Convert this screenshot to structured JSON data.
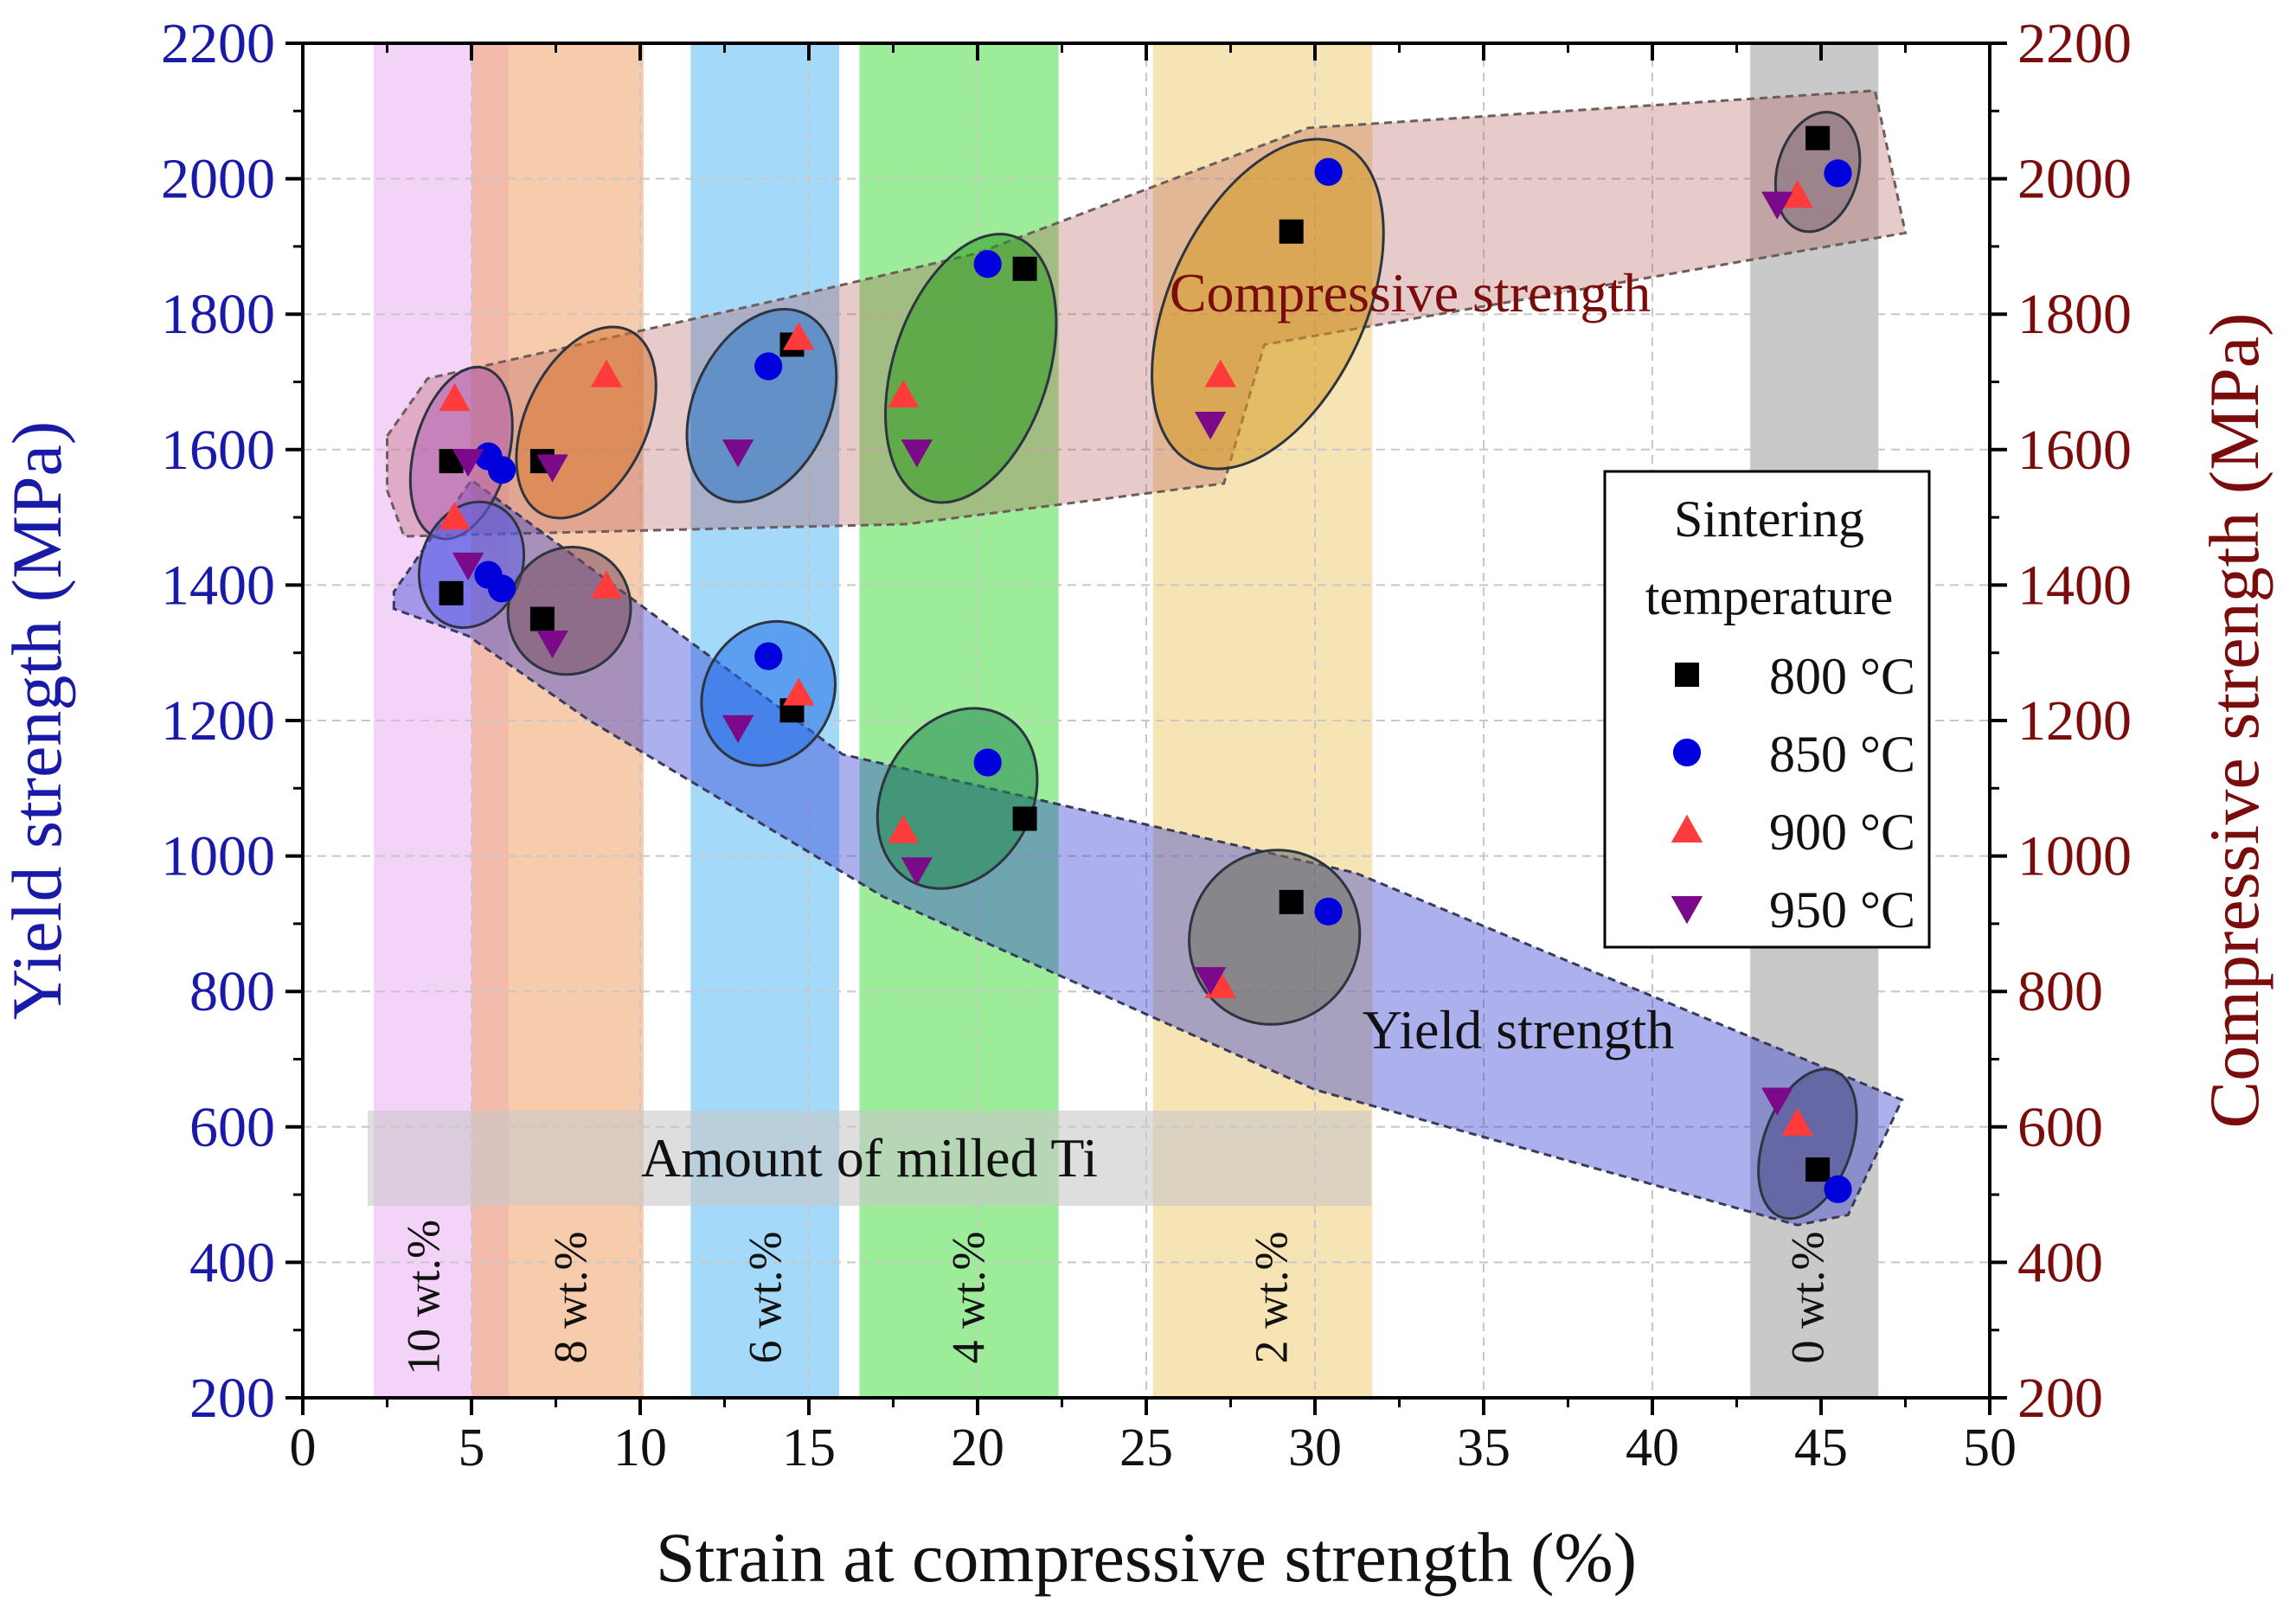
{
  "chart_data": {
    "type": "scatter",
    "xlabel": "Strain at compressive strength (%)",
    "ylabel_left": "Yield strength (MPa)",
    "ylabel_right": "Compressive strength (MPa)",
    "xlim": [
      0,
      50
    ],
    "ylim": [
      200,
      2200
    ],
    "xticks": [
      "0",
      "5",
      "10",
      "15",
      "20",
      "25",
      "30",
      "35",
      "40",
      "45",
      "50"
    ],
    "yticks": [
      "200",
      "400",
      "600",
      "800",
      "1000",
      "1200",
      "1400",
      "1600",
      "1800",
      "2000",
      "2200"
    ],
    "colors": {
      "left_axis": "#1a1aa8",
      "right_axis": "#7a0c0c",
      "s800": "#000000",
      "s850": "#0000dd",
      "s900": "#ff3b3b",
      "s950": "#7a0a8a"
    },
    "bands": [
      {
        "label": "10 wt.%",
        "x0": 2.1,
        "x1": 6.1,
        "color": "#eeb8f5"
      },
      {
        "label": "8 wt.%",
        "x0": 5.0,
        "x1": 10.1,
        "color": "#f2ad7a"
      },
      {
        "label": "6 wt.%",
        "x0": 11.5,
        "x1": 15.9,
        "color": "#6ec2f7"
      },
      {
        "label": "4 wt.%",
        "x0": 16.5,
        "x1": 22.4,
        "color": "#5fe05a"
      },
      {
        "label": "2 wt.%",
        "x0": 25.2,
        "x1": 31.7,
        "color": "#f2d487"
      },
      {
        "label": "0 wt.%",
        "x0": 42.9,
        "x1": 46.7,
        "color": "#a8a8a8"
      }
    ],
    "milled_label": "Amount of milled Ti",
    "region_labels": {
      "compressive": "Compressive strength",
      "yield": "Yield strength"
    },
    "legend": {
      "title_line1": "Sintering",
      "title_line2": "temperature",
      "entries": [
        "800 °C",
        "850 °C",
        "900 °C",
        "950 °C"
      ]
    },
    "series": [
      {
        "name": "800 °C",
        "marker": "square",
        "points": [
          [
            4.4,
            1583
          ],
          [
            7.1,
            1583
          ],
          [
            14.5,
            1755
          ],
          [
            21.4,
            1867
          ],
          [
            29.3,
            1922
          ],
          [
            44.9,
            2060
          ],
          [
            4.4,
            1388
          ],
          [
            7.1,
            1350
          ],
          [
            14.5,
            1215
          ],
          [
            21.4,
            1055
          ],
          [
            29.3,
            932
          ],
          [
            44.9,
            537
          ]
        ]
      },
      {
        "name": "850 °C",
        "marker": "circle",
        "points": [
          [
            5.5,
            1590
          ],
          [
            5.9,
            1570
          ],
          [
            13.8,
            1723
          ],
          [
            20.3,
            1874
          ],
          [
            30.4,
            2010
          ],
          [
            45.5,
            2008
          ],
          [
            5.5,
            1415
          ],
          [
            5.9,
            1395
          ],
          [
            13.8,
            1295
          ],
          [
            20.3,
            1138
          ],
          [
            30.4,
            918
          ],
          [
            45.5,
            508
          ]
        ]
      },
      {
        "name": "900 °C",
        "marker": "triangle-up",
        "points": [
          [
            4.5,
            1675
          ],
          [
            9.0,
            1710
          ],
          [
            14.7,
            1765
          ],
          [
            17.8,
            1680
          ],
          [
            27.2,
            1710
          ],
          [
            44.3,
            1975
          ],
          [
            4.5,
            1500
          ],
          [
            9.0,
            1398
          ],
          [
            14.7,
            1240
          ],
          [
            17.8,
            1037
          ],
          [
            27.2,
            808
          ],
          [
            44.3,
            605
          ]
        ]
      },
      {
        "name": "950 °C",
        "marker": "triangle-down",
        "points": [
          [
            4.9,
            1583
          ],
          [
            7.4,
            1575
          ],
          [
            12.9,
            1597
          ],
          [
            18.2,
            1597
          ],
          [
            26.9,
            1638
          ],
          [
            43.7,
            1963
          ],
          [
            4.9,
            1430
          ],
          [
            7.4,
            1315
          ],
          [
            12.9,
            1190
          ],
          [
            18.2,
            980
          ],
          [
            26.9,
            818
          ],
          [
            43.7,
            640
          ]
        ]
      }
    ]
  }
}
